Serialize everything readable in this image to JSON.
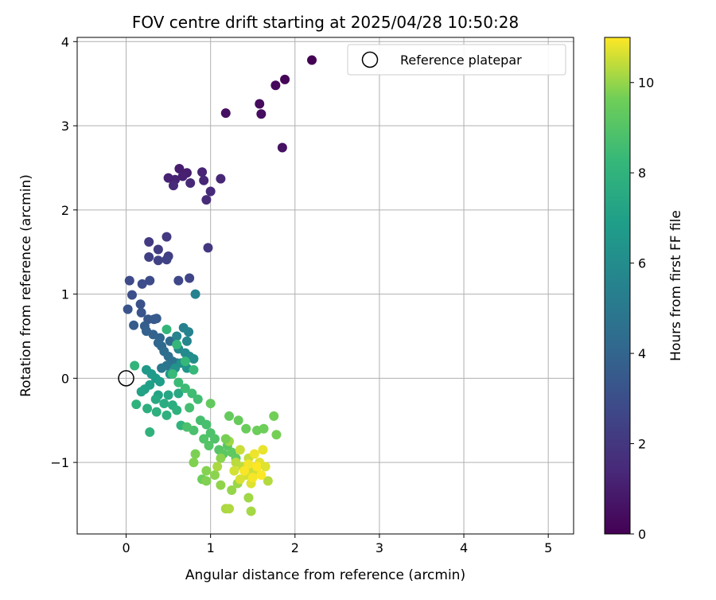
{
  "chart_data": {
    "type": "scatter",
    "title": "FOV centre drift starting at 2025/04/28 10:50:28",
    "xlabel": "Angular distance from reference (arcmin)",
    "ylabel": "Rotation from reference (arcmin)",
    "xlim": [
      -0.58,
      5.3
    ],
    "ylim": [
      -1.85,
      4.05
    ],
    "x_ticks": [
      0,
      1,
      2,
      3,
      4,
      5
    ],
    "x_tick_labels": [
      "0",
      "1",
      "2",
      "3",
      "4",
      "5"
    ],
    "y_ticks": [
      -1,
      0,
      1,
      2,
      3,
      4
    ],
    "y_tick_labels": [
      "−1",
      "0",
      "1",
      "2",
      "3",
      "4"
    ],
    "grid": true,
    "legend": {
      "placement": "top-right",
      "entries": [
        "Reference platepar"
      ]
    },
    "reference_point": {
      "x": 0,
      "y": 0,
      "label": "Reference platepar"
    },
    "colorbar": {
      "label": "Hours from first FF file",
      "min": 0,
      "max": 11,
      "ticks": [
        0,
        2,
        4,
        6,
        8,
        10
      ],
      "tick_labels": [
        "0",
        "2",
        "4",
        "6",
        "8",
        "10"
      ],
      "colormap": "viridis"
    },
    "points": [
      [
        2.2,
        3.78,
        0.05
      ],
      [
        1.88,
        3.55,
        0.15
      ],
      [
        1.77,
        3.48,
        0.25
      ],
      [
        1.58,
        3.26,
        0.35
      ],
      [
        1.6,
        3.14,
        0.45
      ],
      [
        1.18,
        3.15,
        0.5
      ],
      [
        1.85,
        2.74,
        0.6
      ],
      [
        0.63,
        2.49,
        1.0
      ],
      [
        0.72,
        2.44,
        1.05
      ],
      [
        0.67,
        2.4,
        1.1
      ],
      [
        0.5,
        2.38,
        1.15
      ],
      [
        0.58,
        2.36,
        1.2
      ],
      [
        0.9,
        2.45,
        1.25
      ],
      [
        0.92,
        2.35,
        1.3
      ],
      [
        1.12,
        2.37,
        1.35
      ],
      [
        0.76,
        2.32,
        1.4
      ],
      [
        0.56,
        2.29,
        1.45
      ],
      [
        1.0,
        2.22,
        1.5
      ],
      [
        0.95,
        2.12,
        1.55
      ],
      [
        0.97,
        1.55,
        2.0
      ],
      [
        0.48,
        1.68,
        2.1
      ],
      [
        0.27,
        1.62,
        2.15
      ],
      [
        0.38,
        1.53,
        2.2
      ],
      [
        0.5,
        1.45,
        2.3
      ],
      [
        0.27,
        1.44,
        2.35
      ],
      [
        0.38,
        1.4,
        2.4
      ],
      [
        0.48,
        1.41,
        2.45
      ],
      [
        0.75,
        1.19,
        2.6
      ],
      [
        0.62,
        1.16,
        2.7
      ],
      [
        0.04,
        1.16,
        2.8
      ],
      [
        0.28,
        1.16,
        2.85
      ],
      [
        0.19,
        1.12,
        2.9
      ],
      [
        0.07,
        0.99,
        3.0
      ],
      [
        0.17,
        0.88,
        3.1
      ],
      [
        0.02,
        0.82,
        3.2
      ],
      [
        0.18,
        0.78,
        3.3
      ],
      [
        0.26,
        0.7,
        3.4
      ],
      [
        0.33,
        0.7,
        3.5
      ],
      [
        0.36,
        0.71,
        3.55
      ],
      [
        0.09,
        0.63,
        3.6
      ],
      [
        0.22,
        0.62,
        3.7
      ],
      [
        0.24,
        0.56,
        3.8
      ],
      [
        0.32,
        0.52,
        3.9
      ],
      [
        0.4,
        0.48,
        4.0
      ],
      [
        0.38,
        0.42,
        4.1
      ],
      [
        0.42,
        0.38,
        4.2
      ],
      [
        0.52,
        0.44,
        4.3
      ],
      [
        0.45,
        0.32,
        4.4
      ],
      [
        0.5,
        0.26,
        4.5
      ],
      [
        0.55,
        0.2,
        4.6
      ],
      [
        0.6,
        0.18,
        4.7
      ],
      [
        0.48,
        0.15,
        4.8
      ],
      [
        0.42,
        0.12,
        4.9
      ],
      [
        0.82,
        1.0,
        5.5
      ],
      [
        0.68,
        0.6,
        5.4
      ],
      [
        0.74,
        0.55,
        5.5
      ],
      [
        0.6,
        0.5,
        5.6
      ],
      [
        0.72,
        0.44,
        5.7
      ],
      [
        0.62,
        0.35,
        5.8
      ],
      [
        0.7,
        0.3,
        5.9
      ],
      [
        0.75,
        0.26,
        6.0
      ],
      [
        0.8,
        0.23,
        6.1
      ],
      [
        0.65,
        0.18,
        6.2
      ],
      [
        0.58,
        0.12,
        6.3
      ],
      [
        0.72,
        0.12,
        6.4
      ],
      [
        0.52,
        0.05,
        6.5
      ],
      [
        0.24,
        0.1,
        6.6
      ],
      [
        0.3,
        0.05,
        6.7
      ],
      [
        0.35,
        0.0,
        6.8
      ],
      [
        0.4,
        -0.04,
        6.9
      ],
      [
        0.28,
        -0.08,
        7.0
      ],
      [
        0.22,
        -0.13,
        7.05
      ],
      [
        0.18,
        -0.16,
        7.1
      ],
      [
        0.38,
        -0.2,
        7.2
      ],
      [
        0.5,
        -0.2,
        7.3
      ],
      [
        0.62,
        -0.18,
        7.4
      ],
      [
        0.35,
        -0.25,
        7.5
      ],
      [
        0.45,
        -0.3,
        7.6
      ],
      [
        0.55,
        -0.32,
        7.7
      ],
      [
        0.25,
        -0.36,
        7.75
      ],
      [
        0.36,
        -0.4,
        7.8
      ],
      [
        0.48,
        -0.44,
        7.85
      ],
      [
        0.6,
        -0.38,
        7.9
      ],
      [
        0.12,
        -0.31,
        7.95
      ],
      [
        0.28,
        -0.64,
        8.0
      ],
      [
        0.65,
        -0.56,
        8.05
      ],
      [
        0.1,
        0.15,
        8.1
      ],
      [
        0.48,
        0.58,
        8.15
      ],
      [
        0.6,
        0.4,
        8.2
      ],
      [
        0.7,
        0.2,
        8.25
      ],
      [
        0.8,
        0.1,
        8.3
      ],
      [
        0.55,
        0.05,
        8.35
      ],
      [
        0.62,
        -0.05,
        8.4
      ],
      [
        0.7,
        -0.12,
        8.45
      ],
      [
        0.78,
        -0.18,
        8.5
      ],
      [
        0.85,
        -0.25,
        8.55
      ],
      [
        0.75,
        -0.35,
        8.6
      ],
      [
        0.88,
        -0.5,
        8.65
      ],
      [
        0.95,
        -0.55,
        8.7
      ],
      [
        0.8,
        -0.62,
        8.75
      ],
      [
        0.72,
        -0.58,
        8.8
      ],
      [
        1.0,
        -0.65,
        8.85
      ],
      [
        1.05,
        -0.72,
        8.9
      ],
      [
        0.92,
        -0.72,
        8.95
      ],
      [
        0.98,
        -0.8,
        9.0
      ],
      [
        1.1,
        -0.85,
        9.05
      ],
      [
        1.2,
        -0.8,
        9.1
      ],
      [
        1.15,
        -0.9,
        9.2
      ],
      [
        1.25,
        -0.88,
        9.25
      ],
      [
        1.3,
        -0.95,
        9.3
      ],
      [
        1.0,
        -0.3,
        9.35
      ],
      [
        1.22,
        -0.45,
        9.4
      ],
      [
        1.33,
        -0.5,
        9.45
      ],
      [
        1.42,
        -0.6,
        9.5
      ],
      [
        1.55,
        -0.62,
        9.55
      ],
      [
        1.63,
        -0.6,
        9.6
      ],
      [
        1.75,
        -0.45,
        9.65
      ],
      [
        1.78,
        -0.67,
        9.7
      ],
      [
        0.82,
        -0.9,
        9.75
      ],
      [
        0.8,
        -1.0,
        9.8
      ],
      [
        0.95,
        -1.1,
        9.85
      ],
      [
        1.05,
        -1.15,
        9.9
      ],
      [
        1.12,
        -1.27,
        9.95
      ],
      [
        1.25,
        -1.33,
        10.0
      ],
      [
        1.32,
        -1.25,
        10.05
      ],
      [
        1.45,
        -1.42,
        10.1
      ],
      [
        1.48,
        -1.58,
        10.15
      ],
      [
        1.18,
        -1.55,
        10.2
      ],
      [
        1.22,
        -1.55,
        10.25
      ],
      [
        1.68,
        -1.22,
        10.3
      ],
      [
        1.3,
        -1.0,
        10.35
      ],
      [
        1.38,
        -1.05,
        10.4
      ],
      [
        1.45,
        -0.95,
        10.45
      ],
      [
        1.5,
        -1.08,
        10.5
      ],
      [
        1.55,
        -1.12,
        10.55
      ],
      [
        1.42,
        -1.15,
        10.6
      ],
      [
        1.35,
        -1.2,
        10.65
      ],
      [
        1.48,
        -1.25,
        10.7
      ],
      [
        1.58,
        -1.0,
        10.75
      ],
      [
        1.62,
        -0.85,
        10.8
      ],
      [
        1.52,
        -0.9,
        10.85
      ],
      [
        1.45,
        -1.02,
        10.9
      ],
      [
        1.4,
        -1.1,
        10.95
      ],
      [
        1.55,
        -1.05,
        11.0
      ],
      [
        1.6,
        -1.15,
        10.98
      ],
      [
        1.5,
        -1.18,
        10.92
      ],
      [
        1.35,
        -0.85,
        10.5
      ],
      [
        1.22,
        -0.75,
        10.1
      ],
      [
        1.18,
        -0.72,
        9.7
      ],
      [
        1.12,
        -0.95,
        9.9
      ],
      [
        1.08,
        -1.05,
        10.2
      ],
      [
        0.9,
        -1.2,
        9.6
      ],
      [
        0.95,
        -1.22,
        9.8
      ],
      [
        1.28,
        -1.1,
        10.6
      ],
      [
        1.65,
        -1.05,
        10.7
      ]
    ]
  }
}
